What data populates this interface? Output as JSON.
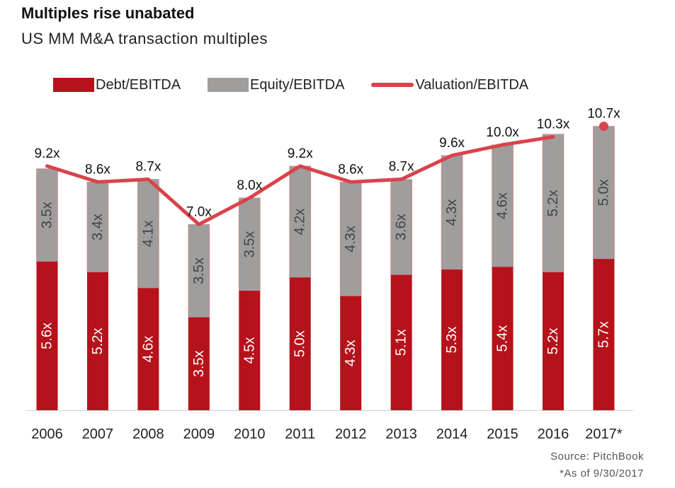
{
  "title": "Multiples rise unabated",
  "subtitle": "US MM M&A transaction multiples",
  "source": "Source: PitchBook",
  "footnote": "*As of 9/30/2017",
  "colors": {
    "debt": "#b5121b",
    "equity": "#a09d9d",
    "valuation": "#d9434b"
  },
  "chart_data": {
    "type": "bar",
    "stacked": true,
    "categories": [
      "2006",
      "2007",
      "2008",
      "2009",
      "2010",
      "2011",
      "2012",
      "2013",
      "2014",
      "2015",
      "2016",
      "2017*"
    ],
    "series": [
      {
        "name": "Debt/EBITDA",
        "type": "bar",
        "values": [
          5.6,
          5.2,
          4.6,
          3.5,
          4.5,
          5.0,
          4.3,
          5.1,
          5.3,
          5.4,
          5.2,
          5.7
        ],
        "labels": [
          "5.6x",
          "5.2x",
          "4.6x",
          "3.5x",
          "4.5x",
          "5.0x",
          "4.3x",
          "5.1x",
          "5.3x",
          "5.4x",
          "5.2x",
          "5.7x"
        ]
      },
      {
        "name": "Equity/EBITDA",
        "type": "bar",
        "values": [
          3.5,
          3.4,
          4.1,
          3.5,
          3.5,
          4.2,
          4.3,
          3.6,
          4.3,
          4.6,
          5.2,
          5.0
        ],
        "labels": [
          "3.5x",
          "3.4x",
          "4.1x",
          "3.5x",
          "3.5x",
          "4.2x",
          "4.3x",
          "3.6x",
          "4.3x",
          "4.6x",
          "5.2x",
          "5.0x"
        ]
      },
      {
        "name": "Valuation/EBITDA",
        "type": "line",
        "values": [
          9.2,
          8.6,
          8.7,
          7.0,
          8.0,
          9.2,
          8.6,
          8.7,
          9.6,
          10.0,
          10.3,
          10.7
        ],
        "labels": [
          "9.2x",
          "8.6x",
          "8.7x",
          "7.0x",
          "8.0x",
          "9.2x",
          "8.6x",
          "8.7x",
          "9.6x",
          "10.0x",
          "10.3x",
          "10.7x"
        ],
        "separate_last_point": true
      }
    ],
    "ylim": [
      0,
      11.3
    ],
    "grid": false,
    "legend": "top"
  }
}
